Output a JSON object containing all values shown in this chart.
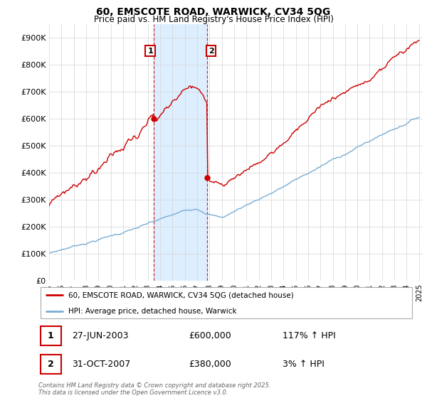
{
  "title_line1": "60, EMSCOTE ROAD, WARWICK, CV34 5QG",
  "title_line2": "Price paid vs. HM Land Registry's House Price Index (HPI)",
  "ylim": [
    0,
    950000
  ],
  "yticks": [
    0,
    100000,
    200000,
    300000,
    400000,
    500000,
    600000,
    700000,
    800000,
    900000
  ],
  "ytick_labels": [
    "£0",
    "£100K",
    "£200K",
    "£300K",
    "£400K",
    "£500K",
    "£600K",
    "£700K",
    "£800K",
    "£900K"
  ],
  "line1_label": "60, EMSCOTE ROAD, WARWICK, CV34 5QG (detached house)",
  "line2_label": "HPI: Average price, detached house, Warwick",
  "line1_color": "#cc0000",
  "line2_color": "#7aadd4",
  "shaded_color": "#ddeeff",
  "t1_x": 2003.5,
  "t1_y": 600000,
  "t2_x": 2007.83,
  "t2_y": 380000,
  "transaction1": {
    "label": "1",
    "date": "27-JUN-2003",
    "price": "£600,000",
    "hpi": "117% ↑ HPI"
  },
  "transaction2": {
    "label": "2",
    "date": "31-OCT-2007",
    "price": "£380,000",
    "hpi": "3% ↑ HPI"
  },
  "footer": "Contains HM Land Registry data © Crown copyright and database right 2025.\nThis data is licensed under the Open Government Licence v3.0.",
  "start_year": 1995,
  "end_year": 2025,
  "xlim_left": 1995,
  "xlim_right": 2025.3
}
